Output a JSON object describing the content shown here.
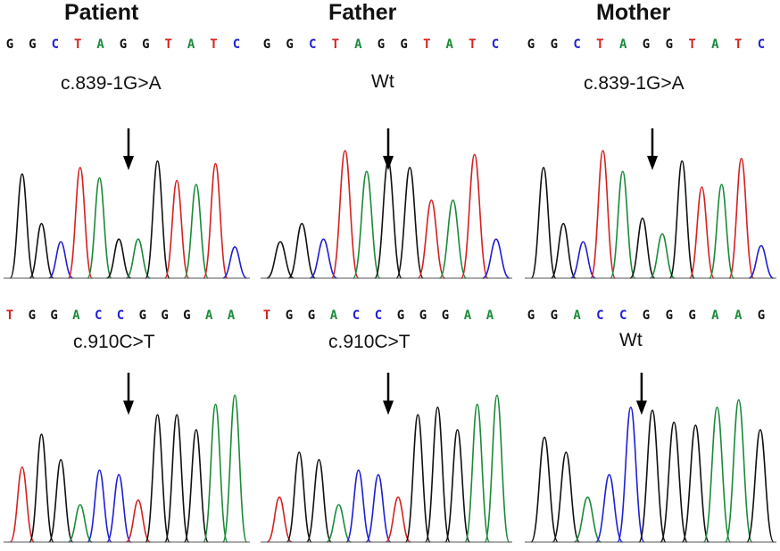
{
  "colors": {
    "A": "#1b8a3a",
    "C": "#1f1fd6",
    "G": "#111111",
    "T": "#d62020"
  },
  "headers": {
    "patient": "Patient",
    "father": "Father",
    "mother": "Mother"
  },
  "panels": [
    {
      "id": "patient-top",
      "sequence": [
        "G",
        "G",
        "C",
        "T",
        "A",
        "G",
        "G",
        "T",
        "A",
        "T",
        "C"
      ],
      "label": "c.839-1G>A",
      "peaks": [
        [
          "G",
          0.8
        ],
        [
          "G",
          0.42
        ],
        [
          "C",
          0.28
        ],
        [
          "T",
          0.85
        ],
        [
          "A",
          0.77
        ],
        [
          "G",
          0.3
        ],
        [
          "A",
          0.3
        ],
        [
          "G",
          0.9
        ],
        [
          "T",
          0.75
        ],
        [
          "A",
          0.72
        ],
        [
          "T",
          0.88
        ],
        [
          "C",
          0.24
        ]
      ],
      "arrow_peak": 5.5
    },
    {
      "id": "father-top",
      "sequence": [
        "G",
        "G",
        "C",
        "T",
        "A",
        "G",
        "G",
        "T",
        "A",
        "T",
        "C"
      ],
      "label": "Wt",
      "peaks": [
        [
          "G",
          0.28
        ],
        [
          "G",
          0.42
        ],
        [
          "C",
          0.3
        ],
        [
          "T",
          0.98
        ],
        [
          "A",
          0.82
        ],
        [
          "G",
          0.9
        ],
        [
          "G",
          0.85
        ],
        [
          "T",
          0.6
        ],
        [
          "A",
          0.6
        ],
        [
          "T",
          0.95
        ],
        [
          "C",
          0.3
        ]
      ],
      "arrow_peak": 5
    },
    {
      "id": "mother-top",
      "sequence": [
        "G",
        "G",
        "C",
        "T",
        "A",
        "G",
        "G",
        "T",
        "A",
        "T",
        "C"
      ],
      "label": "c.839-1G>A",
      "peaks": [
        [
          "G",
          0.85
        ],
        [
          "G",
          0.42
        ],
        [
          "C",
          0.28
        ],
        [
          "T",
          0.98
        ],
        [
          "A",
          0.82
        ],
        [
          "G",
          0.46
        ],
        [
          "A",
          0.34
        ],
        [
          "G",
          0.9
        ],
        [
          "T",
          0.7
        ],
        [
          "A",
          0.72
        ],
        [
          "T",
          0.92
        ],
        [
          "C",
          0.25
        ]
      ],
      "arrow_peak": 5.5
    },
    {
      "id": "patient-bottom",
      "sequence": [
        "T",
        "G",
        "G",
        "A",
        "C",
        "C",
        "G",
        "G",
        "G",
        "A",
        "A"
      ],
      "label": "c.910C>T",
      "peaks": [
        [
          "T",
          0.5
        ],
        [
          "G",
          0.72
        ],
        [
          "G",
          0.55
        ],
        [
          "A",
          0.25
        ],
        [
          "C",
          0.48
        ],
        [
          "C",
          0.45
        ],
        [
          "T",
          0.28
        ],
        [
          "G",
          0.85
        ],
        [
          "G",
          0.85
        ],
        [
          "G",
          0.75
        ],
        [
          "A",
          0.92
        ],
        [
          "A",
          0.98
        ]
      ],
      "arrow_peak": 5.5
    },
    {
      "id": "father-bottom",
      "sequence": [
        "T",
        "G",
        "G",
        "A",
        "C",
        "C",
        "G",
        "G",
        "G",
        "A",
        "A"
      ],
      "label": "c.910C>T",
      "peaks": [
        [
          "T",
          0.3
        ],
        [
          "G",
          0.6
        ],
        [
          "G",
          0.55
        ],
        [
          "A",
          0.25
        ],
        [
          "C",
          0.48
        ],
        [
          "C",
          0.45
        ],
        [
          "T",
          0.3
        ],
        [
          "G",
          0.85
        ],
        [
          "G",
          0.9
        ],
        [
          "G",
          0.75
        ],
        [
          "A",
          0.92
        ],
        [
          "A",
          0.98
        ]
      ],
      "arrow_peak": 5.5
    },
    {
      "id": "mother-bottom",
      "sequence": [
        "G",
        "G",
        "A",
        "C",
        "C",
        "G",
        "G",
        "G",
        "A",
        "A",
        "G"
      ],
      "label": "Wt",
      "peaks": [
        [
          "G",
          0.7
        ],
        [
          "G",
          0.6
        ],
        [
          "A",
          0.3
        ],
        [
          "C",
          0.45
        ],
        [
          "C",
          0.9
        ],
        [
          "G",
          0.88
        ],
        [
          "G",
          0.8
        ],
        [
          "G",
          0.78
        ],
        [
          "A",
          0.9
        ],
        [
          "A",
          0.95
        ],
        [
          "G",
          0.75
        ]
      ],
      "arrow_peak": 4.5
    }
  ]
}
